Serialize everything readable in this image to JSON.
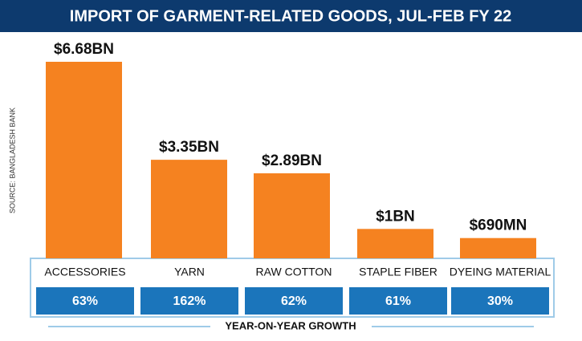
{
  "chart_data": {
    "type": "bar",
    "title": "IMPORT OF GARMENT-RELATED GOODS, JUL-FEB FY 22",
    "source": "SOURCE: BANGLADESH BANK",
    "categories": [
      "ACCESSORIES",
      "YARN",
      "RAW COTTON",
      "STAPLE FIBER",
      "DYEING MATERIAL"
    ],
    "values": [
      6.68,
      3.35,
      2.89,
      1,
      0.69
    ],
    "value_labels": [
      "$6.68BN",
      "$3.35BN",
      "$2.89BN",
      "$1BN",
      "$690MN"
    ],
    "color": "#f58220",
    "growth": {
      "label": "YEAR-ON-YEAR GROWTH",
      "values": [
        63,
        162,
        62,
        61,
        30
      ],
      "value_labels": [
        "63%",
        "162%",
        "62%",
        "61%",
        "30%"
      ],
      "color": "#1b75bb"
    }
  }
}
